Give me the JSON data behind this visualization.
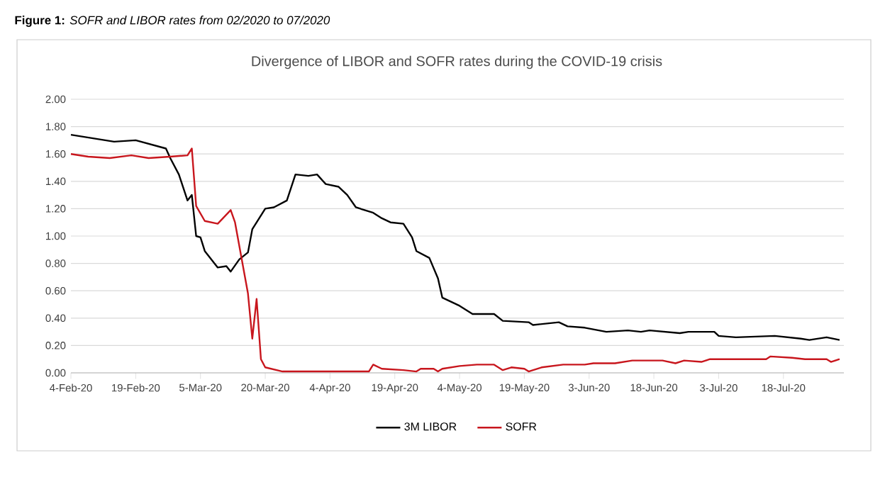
{
  "chart_data": {
    "type": "line",
    "title": "**Figure 1:** *SOFR and LIBOR rates from 02/2020 to 07/2020*",
    "subtitle": "Divergence of LIBOR and SOFR rates during the COVID-19 crisis",
    "xlim": [
      "2020-02-04",
      "2020-08-01"
    ],
    "xticks": [
      {
        "value": "2020-02-04",
        "label": "4-Feb-20"
      },
      {
        "value": "2020-02-19",
        "label": "19-Feb-20"
      },
      {
        "value": "2020-03-05",
        "label": "5-Mar-20"
      },
      {
        "value": "2020-03-20",
        "label": "20-Mar-20"
      },
      {
        "value": "2020-04-04",
        "label": "4-Apr-20"
      },
      {
        "value": "2020-04-19",
        "label": "19-Apr-20"
      },
      {
        "value": "2020-05-04",
        "label": "4-May-20"
      },
      {
        "value": "2020-05-19",
        "label": "19-May-20"
      },
      {
        "value": "2020-06-03",
        "label": "3-Jun-20"
      },
      {
        "value": "2020-06-18",
        "label": "18-Jun-20"
      },
      {
        "value": "2020-07-03",
        "label": "3-Jul-20"
      },
      {
        "value": "2020-07-18",
        "label": "18-Jul-20"
      }
    ],
    "ylim": [
      0,
      2
    ],
    "yticks": [
      {
        "value": 0,
        "label": "0.00"
      },
      {
        "value": 0.2,
        "label": "0.20"
      },
      {
        "value": 0.4,
        "label": "0.40"
      },
      {
        "value": 0.6,
        "label": "0.60"
      },
      {
        "value": 0.8,
        "label": "0.80"
      },
      {
        "value": 1,
        "label": "1.00"
      },
      {
        "value": 1.2,
        "label": "1.20"
      },
      {
        "value": 1.4,
        "label": "1.40"
      },
      {
        "value": 1.6,
        "label": "1.60"
      },
      {
        "value": 1.8,
        "label": "1.80"
      },
      {
        "value": 2,
        "label": "2.00"
      }
    ],
    "grid": "y",
    "legend": "bottom",
    "marker": "none",
    "line_style": "solid",
    "series": [
      {
        "name": "3M LIBOR",
        "color": "#000000",
        "x": [
          "2020-02-04",
          "2020-02-14",
          "2020-02-19",
          "2020-02-26",
          "2020-02-27",
          "2020-02-29",
          "2020-03-02",
          "2020-03-03",
          "2020-03-04",
          "2020-03-05",
          "2020-03-06",
          "2020-03-09",
          "2020-03-11",
          "2020-03-12",
          "2020-03-14",
          "2020-03-16",
          "2020-03-17",
          "2020-03-20",
          "2020-03-22",
          "2020-03-25",
          "2020-03-27",
          "2020-03-30",
          "2020-04-01",
          "2020-04-03",
          "2020-04-06",
          "2020-04-08",
          "2020-04-10",
          "2020-04-14",
          "2020-04-16",
          "2020-04-18",
          "2020-04-21",
          "2020-04-23",
          "2020-04-24",
          "2020-04-27",
          "2020-04-29",
          "2020-04-30",
          "2020-05-04",
          "2020-05-07",
          "2020-05-12",
          "2020-05-14",
          "2020-05-20",
          "2020-05-21",
          "2020-05-27",
          "2020-05-29",
          "2020-06-02",
          "2020-06-07",
          "2020-06-12",
          "2020-06-15",
          "2020-06-17",
          "2020-06-24",
          "2020-06-26",
          "2020-07-02",
          "2020-07-03",
          "2020-07-07",
          "2020-07-16",
          "2020-07-22",
          "2020-07-24",
          "2020-07-28",
          "2020-07-31"
        ],
        "values": [
          1.74,
          1.69,
          1.7,
          1.64,
          1.57,
          1.45,
          1.26,
          1.3,
          1.0,
          0.99,
          0.89,
          0.77,
          0.78,
          0.74,
          0.83,
          0.88,
          1.05,
          1.2,
          1.21,
          1.26,
          1.45,
          1.44,
          1.45,
          1.38,
          1.36,
          1.3,
          1.21,
          1.17,
          1.13,
          1.1,
          1.09,
          0.99,
          0.89,
          0.84,
          0.69,
          0.55,
          0.49,
          0.43,
          0.43,
          0.38,
          0.37,
          0.35,
          0.37,
          0.34,
          0.33,
          0.3,
          0.31,
          0.3,
          0.31,
          0.29,
          0.3,
          0.3,
          0.27,
          0.26,
          0.27,
          0.25,
          0.24,
          0.26,
          0.24
        ]
      },
      {
        "name": "SOFR",
        "color": "#c8161d",
        "x": [
          "2020-02-04",
          "2020-02-08",
          "2020-02-13",
          "2020-02-18",
          "2020-02-20",
          "2020-02-22",
          "2020-02-27",
          "2020-03-02",
          "2020-03-03",
          "2020-03-04",
          "2020-03-06",
          "2020-03-09",
          "2020-03-12",
          "2020-03-13",
          "2020-03-16",
          "2020-03-17",
          "2020-03-18",
          "2020-03-19",
          "2020-03-20",
          "2020-03-24",
          "2020-04-13",
          "2020-04-14",
          "2020-04-16",
          "2020-04-21",
          "2020-04-24",
          "2020-04-25",
          "2020-04-28",
          "2020-04-29",
          "2020-04-30",
          "2020-05-04",
          "2020-05-08",
          "2020-05-12",
          "2020-05-14",
          "2020-05-16",
          "2020-05-19",
          "2020-05-20",
          "2020-05-23",
          "2020-05-28",
          "2020-06-02",
          "2020-06-04",
          "2020-06-09",
          "2020-06-13",
          "2020-06-20",
          "2020-06-23",
          "2020-06-25",
          "2020-06-29",
          "2020-07-01",
          "2020-07-04",
          "2020-07-14",
          "2020-07-15",
          "2020-07-20",
          "2020-07-23",
          "2020-07-28",
          "2020-07-29",
          "2020-07-31"
        ],
        "values": [
          1.6,
          1.58,
          1.57,
          1.59,
          1.58,
          1.57,
          1.58,
          1.59,
          1.64,
          1.22,
          1.11,
          1.09,
          1.19,
          1.1,
          0.58,
          0.25,
          0.54,
          0.1,
          0.04,
          0.01,
          0.01,
          0.06,
          0.03,
          0.02,
          0.01,
          0.03,
          0.03,
          0.01,
          0.03,
          0.05,
          0.06,
          0.06,
          0.02,
          0.04,
          0.03,
          0.01,
          0.04,
          0.06,
          0.06,
          0.07,
          0.07,
          0.09,
          0.09,
          0.07,
          0.09,
          0.08,
          0.1,
          0.1,
          0.1,
          0.12,
          0.11,
          0.1,
          0.1,
          0.08,
          0.1
        ]
      }
    ]
  }
}
